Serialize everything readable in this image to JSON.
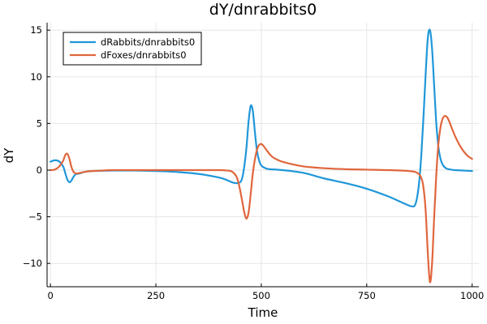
{
  "chart_data": {
    "type": "line",
    "title": "dY/dnrabbits0",
    "xlabel": "Time",
    "ylabel": "dY",
    "xlim": [
      -8,
      1016
    ],
    "ylim": [
      -12.5,
      15.8
    ],
    "xticks": [
      0,
      250,
      500,
      750,
      1000
    ],
    "xtick_labels": [
      "0",
      "250",
      "500",
      "750",
      "1000"
    ],
    "yticks": [
      -10,
      -5,
      0,
      5,
      10,
      15
    ],
    "ytick_labels": [
      "−10",
      "−5",
      "0",
      "5",
      "10",
      "15"
    ],
    "grid": true,
    "legend_position": "top-left",
    "series": [
      {
        "name": "dRabbits/dnrabbits0",
        "color": "#1f97d9",
        "x": [
          0,
          10,
          20,
          30,
          35,
          40,
          45,
          50,
          55,
          60,
          70,
          80,
          100,
          150,
          200,
          250,
          300,
          350,
          400,
          420,
          430,
          440,
          450,
          455,
          460,
          465,
          470,
          475,
          480,
          485,
          490,
          495,
          500,
          510,
          520,
          550,
          600,
          650,
          700,
          750,
          800,
          830,
          850,
          860,
          865,
          870,
          875,
          880,
          885,
          890,
          895,
          900,
          905,
          910,
          915,
          920,
          925,
          930,
          935,
          940,
          950,
          960,
          980,
          1000
        ],
        "y": [
          0.9,
          1.05,
          0.95,
          0.4,
          -0.3,
          -1.0,
          -1.3,
          -1.1,
          -0.7,
          -0.45,
          -0.35,
          -0.2,
          -0.1,
          -0.05,
          -0.05,
          -0.1,
          -0.2,
          -0.4,
          -0.8,
          -1.1,
          -1.3,
          -1.4,
          -1.3,
          -0.8,
          0.5,
          2.5,
          5.3,
          6.9,
          6.3,
          4.0,
          2.0,
          1.0,
          0.5,
          0.2,
          0.1,
          0.0,
          -0.3,
          -0.9,
          -1.4,
          -2.0,
          -2.8,
          -3.4,
          -3.8,
          -3.9,
          -3.7,
          -2.8,
          -1.0,
          2.0,
          6.0,
          10.5,
          14.2,
          15.0,
          13.0,
          9.0,
          5.0,
          2.5,
          1.2,
          0.6,
          0.3,
          0.15,
          0.05,
          0.0,
          -0.05,
          -0.1
        ]
      },
      {
        "name": "dFoxes/dnrabbits0",
        "color": "#e0663d",
        "x": [
          0,
          10,
          20,
          30,
          35,
          40,
          45,
          50,
          55,
          60,
          65,
          70,
          80,
          100,
          150,
          200,
          250,
          300,
          350,
          400,
          420,
          430,
          440,
          445,
          450,
          455,
          460,
          465,
          470,
          475,
          480,
          485,
          490,
          495,
          500,
          505,
          510,
          520,
          530,
          550,
          600,
          650,
          700,
          750,
          800,
          850,
          870,
          880,
          885,
          890,
          895,
          900,
          905,
          910,
          915,
          920,
          925,
          930,
          935,
          940,
          945,
          950,
          960,
          970,
          980,
          990,
          1000
        ],
        "y": [
          0.0,
          0.05,
          0.35,
          1.0,
          1.6,
          1.75,
          1.2,
          0.3,
          -0.2,
          -0.35,
          -0.35,
          -0.3,
          -0.2,
          -0.1,
          0.0,
          0.0,
          0.0,
          0.0,
          0.0,
          0.0,
          -0.05,
          -0.15,
          -0.6,
          -1.2,
          -2.2,
          -3.4,
          -4.6,
          -5.2,
          -4.5,
          -2.5,
          -0.3,
          1.2,
          2.2,
          2.7,
          2.8,
          2.6,
          2.3,
          1.7,
          1.3,
          0.9,
          0.4,
          0.2,
          0.1,
          0.05,
          0.0,
          -0.1,
          -0.3,
          -0.9,
          -2.0,
          -4.5,
          -9.0,
          -12.0,
          -10.0,
          -5.0,
          -0.5,
          2.8,
          4.6,
          5.5,
          5.8,
          5.7,
          5.3,
          4.7,
          3.6,
          2.7,
          2.0,
          1.5,
          1.2
        ]
      }
    ]
  }
}
